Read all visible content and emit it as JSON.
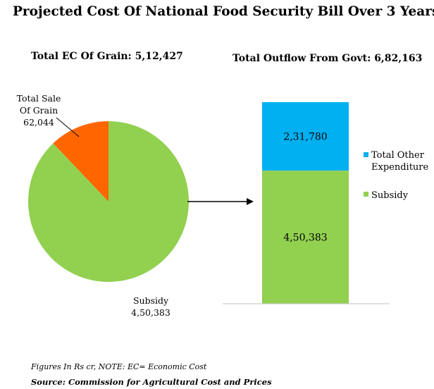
{
  "title": "Projected Cost Of National Food Security Bill Over 3 Years",
  "chart_data": [
    {
      "type": "pie",
      "title": "Total EC Of Grain: 5,12,427",
      "slices": [
        {
          "name": "Subsidy",
          "value": 450383,
          "display": "4,50,383",
          "color": "#92D050"
        },
        {
          "name": "Total Sale Of Grain",
          "value": 62044,
          "display": "62,044",
          "color": "#FF6600"
        }
      ]
    },
    {
      "type": "bar",
      "stacked": true,
      "title": "Total Outflow From Govt: 6,82,163",
      "series": [
        {
          "name": "Subsidy",
          "value": 450383,
          "display": "4,50,383",
          "color": "#92D050"
        },
        {
          "name": "Total Other Expenditure",
          "value": 231780,
          "display": "2,31,780",
          "color": "#00B0F0"
        }
      ],
      "legend_position": "right"
    }
  ],
  "pie_labels": {
    "sale_line1": "Total Sale",
    "sale_line2": "Of Grain",
    "sale_value": "62,044",
    "subsidy_line1": "Subsidy",
    "subsidy_value": "4,50,383"
  },
  "legend": {
    "other_line1": "Total Other",
    "other_line2": "Expenditure",
    "subsidy": "Subsidy"
  },
  "note": "Figures In Rs cr, NOTE: EC= Economic Cost",
  "source": "Source: Commission for Agricultural Cost and Prices"
}
